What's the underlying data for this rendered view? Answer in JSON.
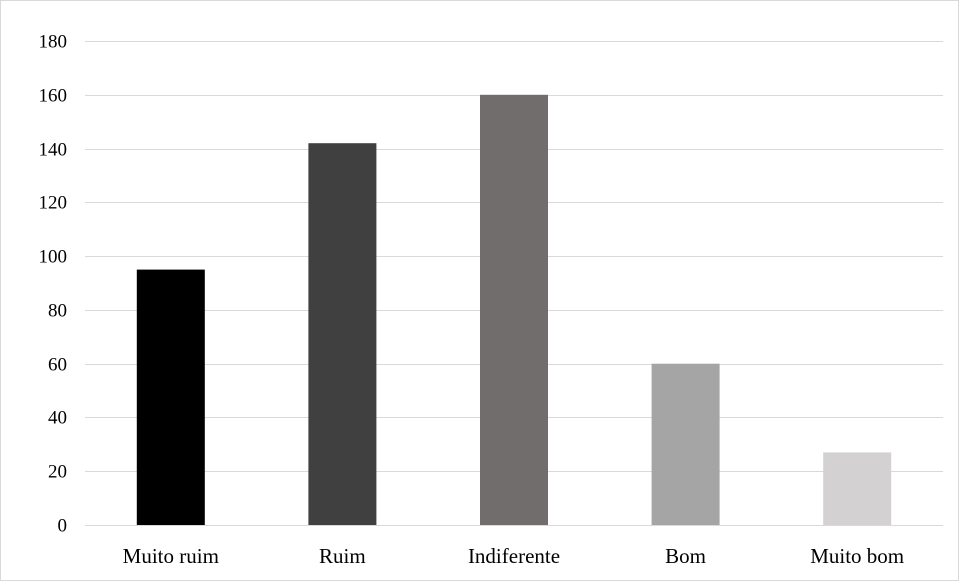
{
  "chart_data": {
    "type": "bar",
    "title": "",
    "xlabel": "",
    "ylabel": "",
    "categories": [
      "Muito ruim",
      "Ruim",
      "Indiferente",
      "Bom",
      "Muito bom"
    ],
    "values": [
      95,
      142,
      160,
      60,
      27
    ],
    "colors": [
      "#000000",
      "#404040",
      "#716d6c",
      "#a5a5a5",
      "#d3d1d1"
    ],
    "ylim": [
      0,
      180
    ],
    "yticks": [
      0,
      20,
      40,
      60,
      80,
      100,
      120,
      140,
      160,
      180
    ],
    "grid": true,
    "legend": "none"
  }
}
